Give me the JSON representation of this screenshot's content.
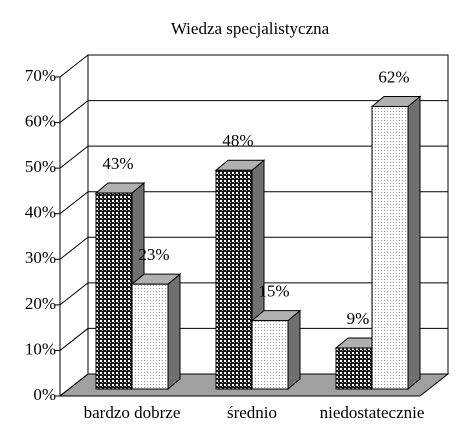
{
  "chart_data": {
    "type": "bar3d",
    "title": "Wiedza specjalistyczna",
    "categories": [
      "bardzo dobrze",
      "średnio",
      "niedostatecznie"
    ],
    "series": [
      {
        "color": "#1a1a1a",
        "values": [
          43,
          48,
          9
        ],
        "value_labels": [
          "43%",
          "48%",
          "9%"
        ]
      },
      {
        "color": "#ffffff",
        "values": [
          23,
          15,
          62
        ],
        "value_labels": [
          "23%",
          "15%",
          "62%"
        ]
      }
    ],
    "ylim": [
      0,
      70
    ],
    "yticks": [
      {
        "value": 0,
        "label": "0%"
      },
      {
        "value": 10,
        "label": "10%"
      },
      {
        "value": 20,
        "label": "20%"
      },
      {
        "value": 30,
        "label": "30%"
      },
      {
        "value": 40,
        "label": "40%"
      },
      {
        "value": 50,
        "label": "50%"
      },
      {
        "value": 60,
        "label": "60%"
      },
      {
        "value": 70,
        "label": "70%"
      }
    ],
    "grid": true
  }
}
